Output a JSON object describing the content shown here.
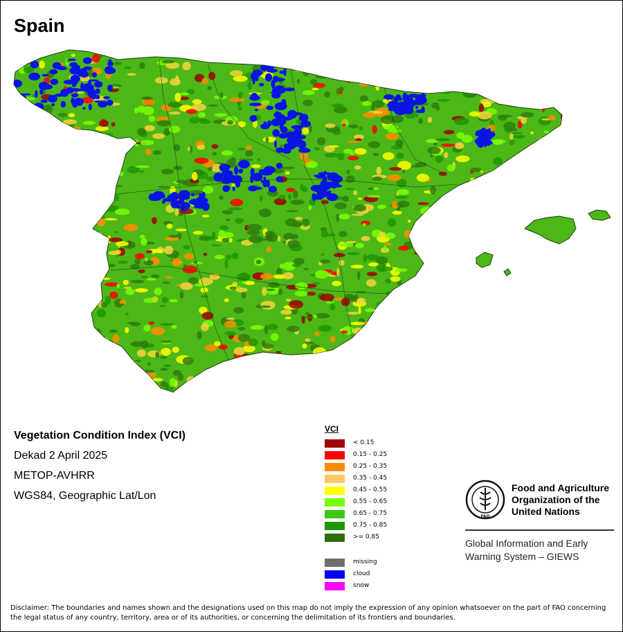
{
  "map": {
    "title": "Spain",
    "landmass_colors": {
      "dominant": "#4cb817",
      "dense": "#2e7d0c",
      "cloud": "#0a14e6",
      "low": "#a00000",
      "mid": "#f8d23c"
    }
  },
  "info": {
    "index_name": "Vegetation Condition Index (VCI)",
    "period": "Dekad 2 April 2025",
    "sensor": "METOP-AVHRR",
    "projection": "WGS84, Geographic Lat/Lon"
  },
  "legend": {
    "title": "VCI",
    "classes": [
      {
        "label": "< 0.15",
        "color": "#a00000"
      },
      {
        "label": "0.15 - 0.25",
        "color": "#ff0000"
      },
      {
        "label": "0.25 - 0.35",
        "color": "#ff8c00"
      },
      {
        "label": "0.35 - 0.45",
        "color": "#ffc864"
      },
      {
        "label": "0.45 - 0.55",
        "color": "#ffff00"
      },
      {
        "label": "0.55 - 0.65",
        "color": "#78ff00"
      },
      {
        "label": "0.65 - 0.75",
        "color": "#3cc814"
      },
      {
        "label": "0.75 - 0.85",
        "color": "#1e9600"
      },
      {
        "label": ">= 0.85",
        "color": "#2e6e0a"
      }
    ],
    "special": [
      {
        "label": "missing",
        "color": "#6e6e6e"
      },
      {
        "label": "cloud",
        "color": "#0000ff"
      },
      {
        "label": "snow",
        "color": "#ff00ff"
      }
    ]
  },
  "org": {
    "logo_text": "FAO",
    "name_line1": "Food and Agriculture",
    "name_line2": "Organization of the",
    "name_line3": "United Nations",
    "system_line1": "Global Information and Early",
    "system_line2": "Warning System – GIEWS"
  },
  "disclaimer": "Disclaimer: The boundaries and names shown and the designations used on this map do not imply the expression of any opinion whatsoever on the part of FAO concerning the legal status of any country, territory, area or of its authorities, or concerning the delimitation of its frontiers and boundaries."
}
